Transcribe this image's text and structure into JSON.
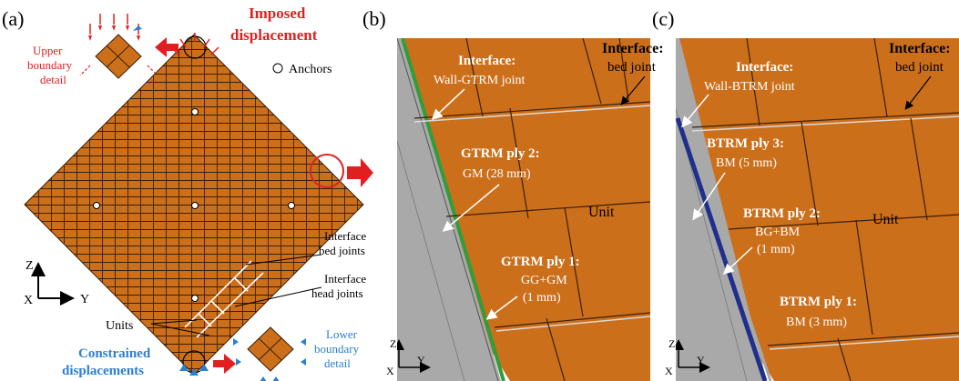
{
  "panels": {
    "a": {
      "label": "(a)",
      "imposed": [
        "Imposed",
        "displacement"
      ],
      "upper_detail": [
        "Upper",
        "boundary",
        "detail"
      ],
      "anchors": "Anchors",
      "interface_bed": [
        "Interface",
        "bed joints"
      ],
      "interface_head": [
        "Interface",
        "head joints"
      ],
      "units": "Units",
      "constrained": [
        "Constrained",
        "displacements"
      ],
      "lower_detail": [
        "Lower",
        "boundary",
        "detail"
      ],
      "axis_z": "Z",
      "axis_x": "X",
      "axis_y": "Y"
    },
    "b": {
      "label": "(b)",
      "interface_title": "Interface:",
      "interface_value": "bed joint",
      "wall_title": "Interface:",
      "wall_value": "Wall-GTRM  joint",
      "ply2_title": "GTRM ply 2:",
      "ply2_value": "GM (28 mm)",
      "unit": "Unit",
      "ply1_title": "GTRM ply 1:",
      "ply1_line1": "GG+GM",
      "ply1_line2": "(1 mm)",
      "axis_z": "Z",
      "axis_x": "X",
      "axis_y": "Y"
    },
    "c": {
      "label": "(c)",
      "interface_title": "Interface:",
      "interface_value": "bed joint",
      "wall_title": "Interface:",
      "wall_value": "Wall-BTRM  joint",
      "ply3_title": "BTRM ply 3:",
      "ply3_value": "BM (5 mm)",
      "unit": "Unit",
      "ply2_title": "BTRM ply 2:",
      "ply2_line1": "BG+BM",
      "ply2_line2": "(1 mm)",
      "ply1_title": "BTRM ply 1:",
      "ply1_value": "BM (3 mm)",
      "axis_z": "Z",
      "axis_x": "X",
      "axis_y": "Y"
    }
  },
  "colors": {
    "brick": "#cc6f1b",
    "mortar_line": "#3a2008",
    "gray_layer": "#a9a9a9",
    "gtrm_green": "#2f9e3a",
    "btrm_blue": "#1f2f8c",
    "red": "#e02020",
    "blue": "#2a7fd0"
  }
}
